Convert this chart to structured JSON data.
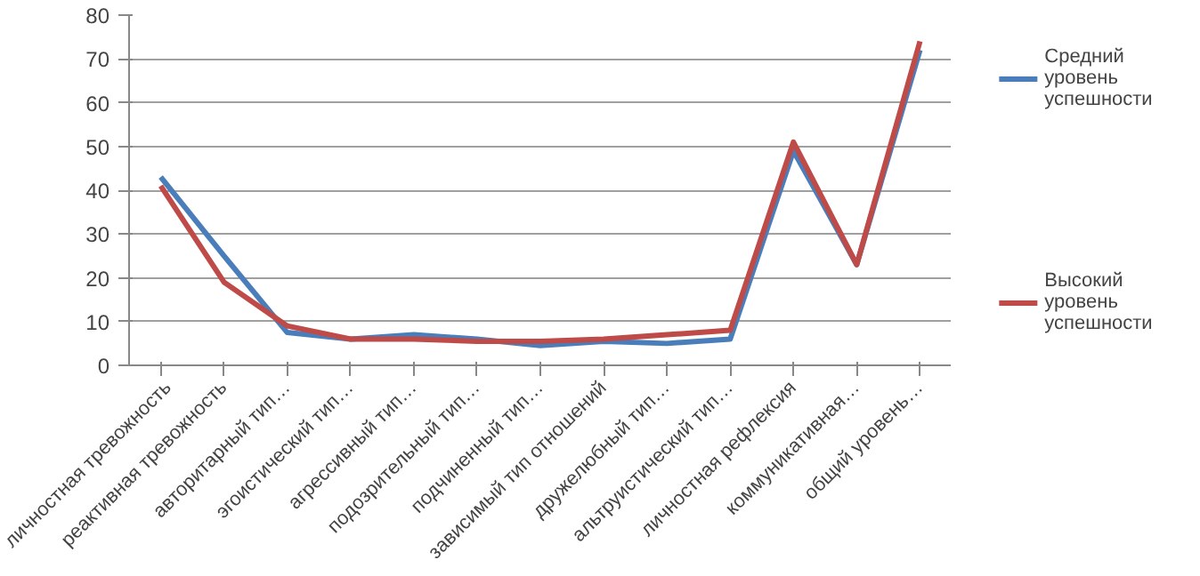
{
  "chart_data": {
    "type": "line",
    "categories": [
      "личностная тревожность",
      "реактивная тревожность",
      "авторитарный тип…",
      "эгоистический тип…",
      "агрессивный тип…",
      "подозрительный тип…",
      "подчиненный тип…",
      "зависимый тип отношений",
      "дружелюбный тип…",
      "альтруистический тип…",
      "личностная рефлексия",
      "коммуникативная…",
      "общий уровень…"
    ],
    "series": [
      {
        "name": "Средний уровень успешности",
        "color": "#4a7ebb",
        "values": [
          43,
          25,
          7.5,
          6,
          7,
          6,
          4.5,
          5.5,
          5,
          6,
          49,
          23,
          72
        ]
      },
      {
        "name": "Высокий уровень успешности",
        "color": "#be4b48",
        "values": [
          41,
          19,
          9,
          6,
          6,
          5.5,
          5.5,
          6,
          7,
          8,
          51,
          23,
          74
        ]
      }
    ],
    "ylim": [
      0,
      80
    ],
    "yticks": [
      0,
      10,
      20,
      30,
      40,
      50,
      60,
      70,
      80
    ],
    "grid": "y",
    "legend": "right",
    "marker": "none",
    "line_style": "solid"
  }
}
